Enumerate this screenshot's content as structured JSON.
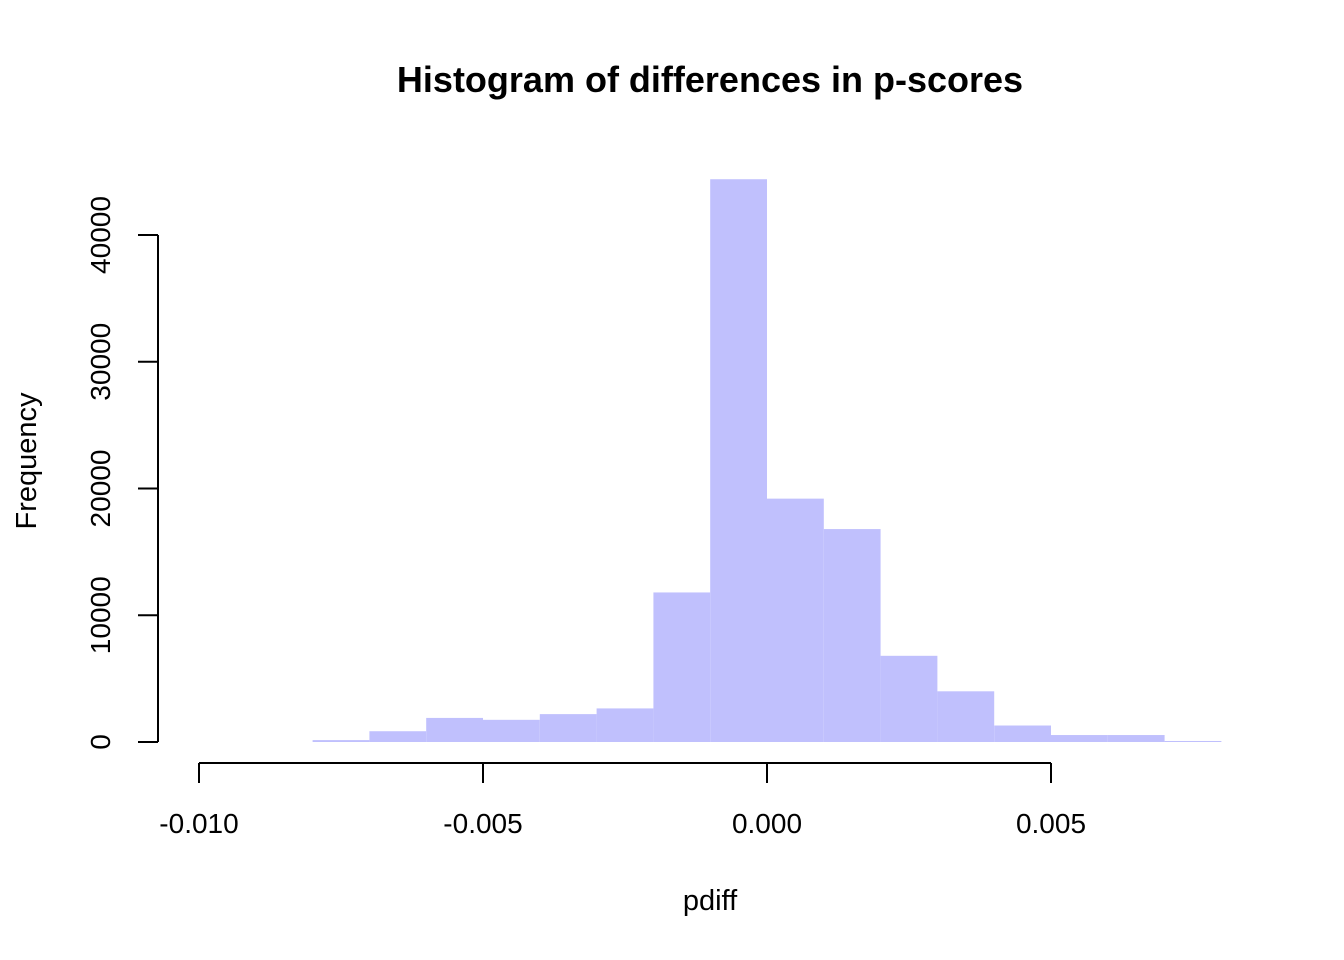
{
  "chart_data": {
    "type": "bar",
    "title": "Histogram of differences in p-scores",
    "xlabel": "pdiff",
    "ylabel": "Frequency",
    "bin_edges": [
      -0.008,
      -0.007,
      -0.006,
      -0.005,
      -0.004,
      -0.003,
      -0.002,
      -0.001,
      0.0,
      0.001,
      0.002,
      0.003,
      0.004,
      0.005,
      0.006,
      0.007,
      0.008
    ],
    "values": [
      150,
      850,
      1900,
      1750,
      2200,
      2650,
      11800,
      44400,
      19200,
      16800,
      6800,
      4000,
      1300,
      550,
      550,
      80
    ],
    "xlim": [
      -0.01,
      0.008
    ],
    "ylim": [
      0,
      44400
    ],
    "x_ticks": [
      -0.01,
      -0.005,
      0.0,
      0.005
    ],
    "x_tick_labels": [
      "-0.010",
      "-0.005",
      "0.000",
      "0.005"
    ],
    "y_ticks": [
      0,
      10000,
      20000,
      30000,
      40000
    ],
    "y_tick_labels": [
      "0",
      "10000",
      "20000",
      "30000",
      "40000"
    ],
    "bar_color": "#c0c0fd",
    "grid": false,
    "legend": "none"
  }
}
